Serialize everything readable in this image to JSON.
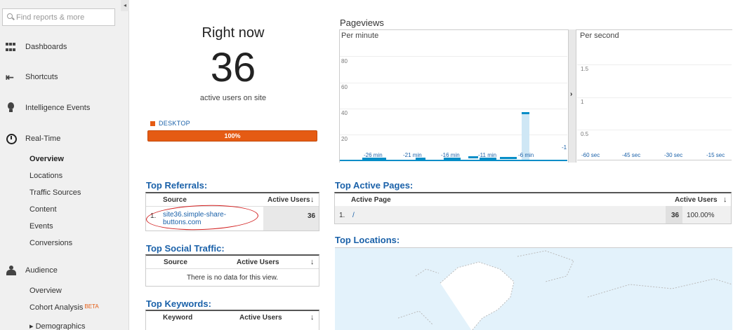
{
  "search": {
    "placeholder": "Find reports & more"
  },
  "sidebar": {
    "sections": [
      {
        "label": "Dashboards",
        "icon": "grid-icon"
      },
      {
        "label": "Shortcuts",
        "icon": "arrow-icon"
      },
      {
        "label": "Intelligence Events",
        "icon": "bulb-icon"
      },
      {
        "label": "Real-Time",
        "icon": "clock-icon"
      },
      {
        "label": "Audience",
        "icon": "people-icon"
      }
    ],
    "realtime_items": [
      "Overview",
      "Locations",
      "Traffic Sources",
      "Content",
      "Events",
      "Conversions"
    ],
    "audience_items": [
      "Overview",
      "Cohort Analysis",
      "▸ Demographics"
    ],
    "beta_label": "BETA"
  },
  "right_now": {
    "title": "Right now",
    "count": "36",
    "subtitle": "active users on site",
    "device_label": "DESKTOP",
    "device_percent": "100%",
    "device_fraction": 1.0,
    "device_color": "#e55b13"
  },
  "pageviews": {
    "title": "Pageviews",
    "per_minute_label": "Per minute",
    "per_second_label": "Per second",
    "minute_y_ticks": [
      "80",
      "60",
      "40",
      "20"
    ],
    "minute_x_ticks": [
      "-26 min",
      "-21 min",
      "-16 min",
      "-11 min",
      "-6 min",
      "-1"
    ],
    "second_y_ticks": [
      "1.5",
      "1",
      "0.5"
    ],
    "second_x_ticks": [
      "-60 sec",
      "-45 sec",
      "-30 sec",
      "-15 sec"
    ],
    "toggle_icon": "›",
    "accent": "#058dc7"
  },
  "top_referrals": {
    "title": "Top Referrals:",
    "col_source": "Source",
    "col_users": "Active Users",
    "rows": [
      {
        "index": "1.",
        "source": "site36.simple-share-buttons.com",
        "users": "36"
      }
    ]
  },
  "top_social": {
    "title": "Top Social Traffic:",
    "col_source": "Source",
    "col_users": "Active Users",
    "empty": "There is no data for this view."
  },
  "top_keywords": {
    "title": "Top Keywords:",
    "col_keyword": "Keyword",
    "col_users": "Active Users"
  },
  "top_pages": {
    "title": "Top Active Pages:",
    "col_page": "Active Page",
    "col_users": "Active Users",
    "rows": [
      {
        "index": "1.",
        "page": "/",
        "users": "36",
        "percent": "100.00%"
      }
    ]
  },
  "top_locations": {
    "title": "Top Locations:"
  },
  "collapse_icon": "◂",
  "sort_icon": "↓"
}
